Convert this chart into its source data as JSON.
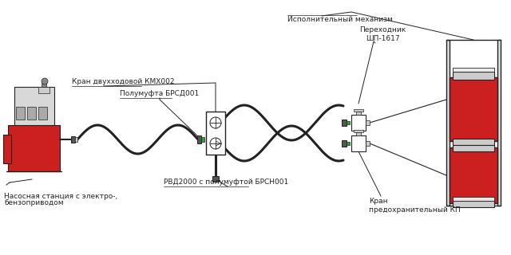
{
  "white": "#ffffff",
  "red": "#cc2020",
  "dark": "#222222",
  "gray1": "#aaaaaa",
  "gray2": "#cccccc",
  "gray3": "#888888",
  "green": "#22aa22",
  "labels": {
    "pump_line1": "Насосная станция с электро-,",
    "pump_line2": "бензоприводом",
    "crane": "Кран двухходовой КМХ002",
    "coupling": "Полумуфта БРСД001",
    "hose": "РВД2000 с полумуфтой БРСН001",
    "mechanism": "Исполнительный механизм",
    "adapter_line1": "Переходник",
    "adapter_line2": "ШП-1617",
    "safety_line1": "Кран",
    "safety_line2": "предохранительный КП"
  },
  "fs": 6.5,
  "fs_small": 6.0
}
